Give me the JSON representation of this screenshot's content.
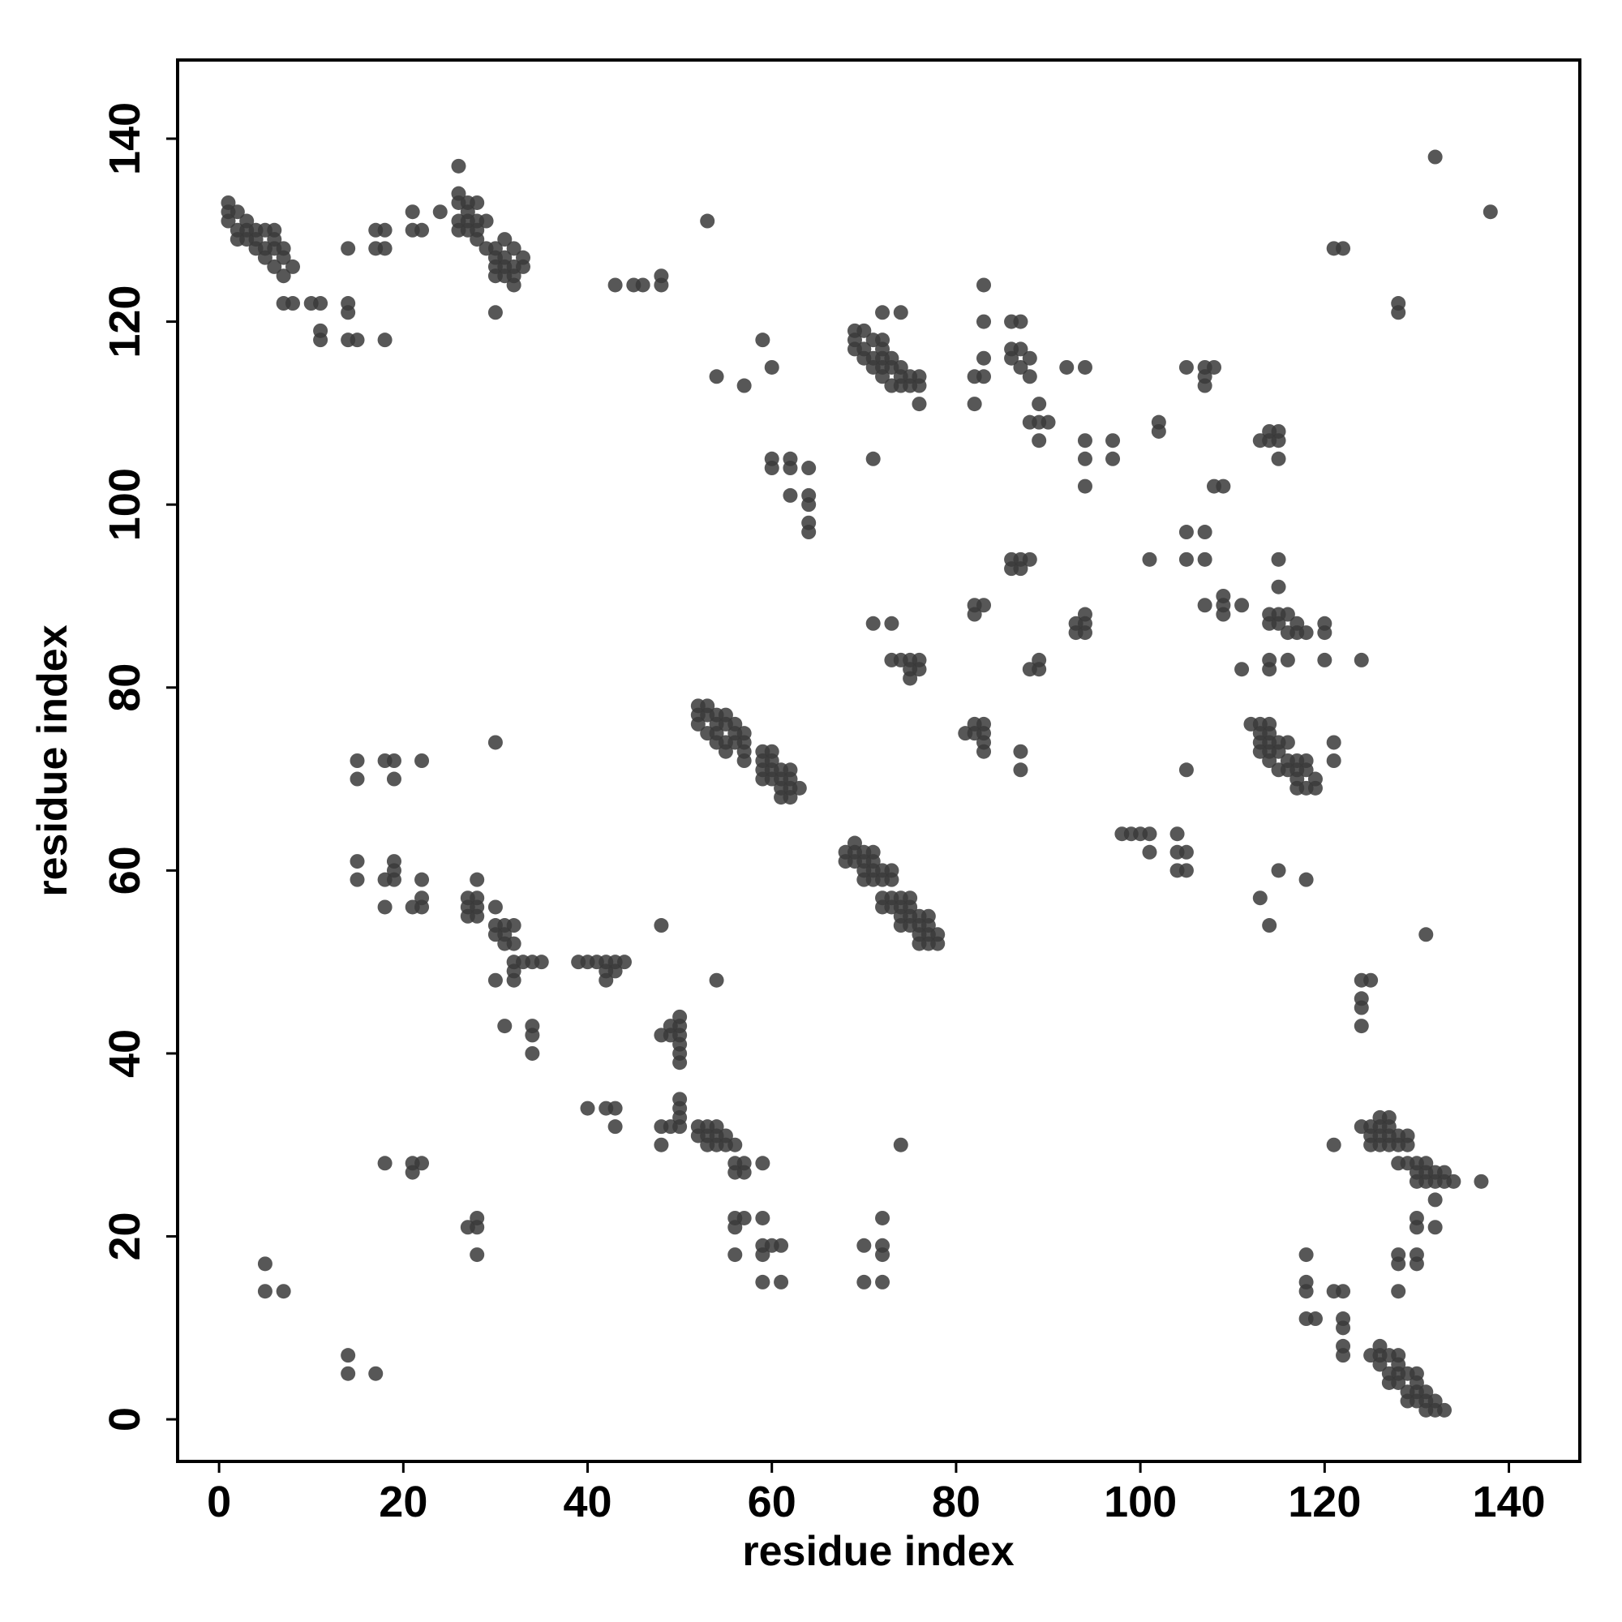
{
  "chart_data": {
    "type": "scatter",
    "xlabel": "residue index",
    "ylabel": "residue index",
    "color": "#3a3a3a",
    "xlim": [
      -4.5,
      147.7
    ],
    "ylim": [
      -4.6,
      148.6
    ],
    "xticks": [
      0,
      20,
      40,
      60,
      80,
      100,
      120,
      140
    ],
    "yticks": [
      0,
      20,
      40,
      60,
      80,
      100,
      120,
      140
    ],
    "x": [
      1,
      1,
      1,
      2,
      2,
      2,
      3,
      3,
      3,
      4,
      4,
      4,
      5,
      5,
      5,
      6,
      6,
      6,
      6,
      7,
      7,
      7,
      8,
      7,
      8,
      10,
      11,
      11,
      11,
      14,
      14,
      14,
      14,
      15,
      17,
      17,
      18,
      18,
      18,
      21,
      21,
      22,
      24,
      26,
      26,
      26,
      26,
      26,
      27,
      27,
      27,
      27,
      28,
      28,
      28,
      28,
      29,
      29,
      30,
      30,
      30,
      30,
      30,
      31,
      31,
      31,
      31,
      32,
      32,
      32,
      32,
      33,
      33,
      43,
      45,
      46,
      48,
      48,
      53,
      54,
      57,
      59,
      60,
      60,
      60,
      62,
      62,
      62,
      64,
      64,
      64,
      64,
      64,
      69,
      69,
      69,
      70,
      70,
      70,
      71,
      71,
      71,
      72,
      72,
      72,
      72,
      72,
      72,
      73,
      73,
      73,
      74,
      74,
      74,
      74,
      75,
      75,
      76,
      76,
      76,
      71,
      82,
      82,
      83,
      83,
      83,
      83,
      86,
      86,
      86,
      87,
      87,
      87,
      88,
      88,
      88,
      89,
      89,
      89,
      90,
      92,
      94,
      94,
      94,
      94,
      97,
      97,
      102,
      102,
      105,
      107,
      107,
      107,
      108,
      108,
      109,
      113,
      114,
      114,
      115,
      115,
      115,
      121,
      122,
      128,
      128,
      132,
      138,
      86,
      86,
      87,
      87,
      88,
      101,
      105,
      105,
      107,
      107,
      107,
      109,
      109,
      109,
      111,
      111,
      114,
      114,
      114,
      114,
      115,
      115,
      115,
      115,
      116,
      116,
      116,
      117,
      117,
      118,
      120,
      120,
      120,
      124,
      71,
      73,
      73,
      74,
      75,
      75,
      75,
      76,
      76,
      82,
      82,
      83,
      88,
      89,
      89,
      93,
      93,
      94,
      94,
      94,
      81,
      82,
      82,
      83,
      83,
      83,
      83,
      87,
      87,
      105,
      112,
      113,
      113,
      113,
      113,
      114,
      114,
      114,
      114,
      114,
      115,
      115,
      115,
      116,
      116,
      116,
      117,
      117,
      117,
      117,
      118,
      118,
      118,
      119,
      119,
      121,
      121,
      98,
      99,
      100,
      101,
      101,
      104,
      104,
      104,
      105,
      105,
      113,
      114,
      115,
      118,
      52,
      52,
      52,
      53,
      53,
      53,
      54,
      54,
      54,
      54,
      55,
      55,
      55,
      55,
      56,
      56,
      56,
      57,
      57,
      57,
      57,
      59,
      59,
      59,
      59,
      60,
      60,
      60,
      60,
      61,
      61,
      61,
      61,
      62,
      62,
      62,
      62,
      63,
      68,
      68,
      69,
      69,
      69,
      70,
      70,
      70,
      70,
      71,
      71,
      71,
      71,
      72,
      72,
      72,
      72,
      73,
      73,
      73,
      73,
      74,
      74,
      74,
      74,
      75,
      75,
      75,
      75,
      76,
      76,
      76,
      76,
      77,
      77,
      77,
      77,
      78,
      78,
      15,
      15,
      18,
      19,
      19,
      22,
      30,
      15,
      15,
      18,
      18,
      19,
      19,
      19,
      21,
      22,
      22,
      22,
      27,
      27,
      27,
      28,
      28,
      28,
      28,
      30,
      30,
      30,
      30,
      31,
      31,
      31,
      32,
      32,
      32,
      32,
      32,
      33,
      34,
      35,
      31,
      34,
      34,
      34,
      39,
      40,
      41,
      42,
      42,
      42,
      43,
      43,
      44,
      48,
      54,
      48,
      49,
      49,
      50,
      50,
      50,
      50,
      50,
      50,
      40,
      42,
      43,
      43,
      48,
      48,
      49,
      50,
      50,
      50,
      50,
      52,
      52,
      53,
      53,
      53,
      54,
      54,
      54,
      55,
      55,
      56,
      56,
      56,
      57,
      57,
      59,
      74,
      18,
      21,
      21,
      22,
      27,
      28,
      28,
      28,
      56,
      56,
      56,
      57,
      59,
      59,
      59,
      59,
      60,
      61,
      61,
      70,
      70,
      72,
      72,
      72,
      72,
      5,
      5,
      7,
      14,
      14,
      17,
      118,
      118,
      118,
      118,
      119,
      121,
      122,
      122,
      122,
      122,
      122,
      124,
      124,
      124,
      124,
      125,
      121,
      131,
      124,
      125,
      125,
      125,
      126,
      126,
      126,
      126,
      127,
      127,
      127,
      127,
      128,
      128,
      128,
      129,
      129,
      129,
      130,
      130,
      130,
      131,
      131,
      131,
      132,
      132,
      133,
      133,
      134,
      137,
      132,
      130,
      130,
      132,
      130,
      130,
      128,
      128,
      128,
      125,
      126,
      126,
      126,
      127,
      127,
      127,
      128,
      128,
      128,
      128,
      129,
      129,
      129,
      130,
      130,
      130,
      130,
      131,
      131,
      131,
      132,
      132,
      133
    ],
    "values": [
      133,
      132,
      131,
      132,
      130,
      129,
      131,
      130,
      129,
      130,
      129,
      128,
      130,
      128,
      127,
      130,
      129,
      128,
      126,
      128,
      127,
      125,
      126,
      122,
      122,
      122,
      122,
      119,
      118,
      128,
      122,
      121,
      118,
      118,
      130,
      128,
      130,
      128,
      118,
      132,
      130,
      130,
      132,
      137,
      134,
      133,
      131,
      130,
      133,
      132,
      131,
      130,
      133,
      131,
      130,
      129,
      131,
      128,
      128,
      127,
      126,
      125,
      121,
      129,
      127,
      126,
      125,
      128,
      126,
      125,
      124,
      127,
      126,
      124,
      124,
      124,
      125,
      124,
      131,
      114,
      113,
      118,
      115,
      105,
      104,
      105,
      104,
      101,
      104,
      101,
      100,
      98,
      97,
      119,
      118,
      117,
      119,
      117,
      116,
      118,
      116,
      115,
      121,
      118,
      117,
      116,
      115,
      114,
      116,
      115,
      113,
      121,
      115,
      114,
      113,
      114,
      113,
      114,
      113,
      111,
      105,
      114,
      111,
      124,
      120,
      116,
      114,
      120,
      117,
      116,
      120,
      117,
      115,
      116,
      114,
      109,
      111,
      109,
      107,
      109,
      115,
      115,
      107,
      105,
      102,
      107,
      105,
      109,
      108,
      115,
      115,
      114,
      113,
      115,
      102,
      102,
      107,
      108,
      107,
      108,
      107,
      105,
      128,
      128,
      122,
      121,
      138,
      132,
      94,
      93,
      94,
      93,
      94,
      94,
      97,
      94,
      97,
      94,
      89,
      90,
      89,
      88,
      89,
      82,
      88,
      87,
      83,
      82,
      94,
      91,
      88,
      87,
      88,
      86,
      83,
      87,
      86,
      86,
      87,
      86,
      83,
      83,
      87,
      87,
      83,
      83,
      83,
      82,
      81,
      83,
      82,
      89,
      88,
      89,
      82,
      83,
      82,
      87,
      86,
      88,
      87,
      86,
      75,
      76,
      75,
      76,
      75,
      74,
      73,
      73,
      71,
      71,
      76,
      76,
      75,
      74,
      73,
      76,
      75,
      74,
      73,
      72,
      74,
      73,
      71,
      74,
      72,
      71,
      72,
      71,
      70,
      69,
      72,
      71,
      69,
      70,
      69,
      74,
      72,
      64,
      64,
      64,
      64,
      62,
      64,
      62,
      60,
      62,
      60,
      57,
      54,
      60,
      59,
      78,
      77,
      76,
      78,
      77,
      75,
      77,
      76,
      75,
      74,
      77,
      76,
      74,
      73,
      76,
      75,
      74,
      75,
      74,
      73,
      72,
      73,
      72,
      71,
      70,
      73,
      72,
      71,
      70,
      71,
      70,
      69,
      68,
      71,
      70,
      69,
      68,
      69,
      62,
      61,
      63,
      62,
      61,
      62,
      61,
      60,
      59,
      62,
      61,
      60,
      59,
      60,
      59,
      57,
      56,
      60,
      59,
      57,
      56,
      57,
      56,
      55,
      54,
      57,
      56,
      55,
      54,
      55,
      54,
      53,
      52,
      55,
      54,
      53,
      52,
      53,
      52,
      72,
      70,
      72,
      72,
      70,
      72,
      74,
      61,
      59,
      59,
      56,
      61,
      60,
      59,
      56,
      59,
      57,
      56,
      57,
      56,
      55,
      59,
      57,
      56,
      55,
      56,
      54,
      53,
      48,
      54,
      53,
      52,
      54,
      52,
      50,
      49,
      48,
      50,
      50,
      50,
      43,
      43,
      42,
      40,
      50,
      50,
      50,
      50,
      49,
      48,
      50,
      49,
      50,
      54,
      48,
      42,
      43,
      42,
      44,
      43,
      42,
      41,
      40,
      39,
      34,
      34,
      34,
      32,
      32,
      30,
      32,
      35,
      34,
      33,
      32,
      32,
      31,
      32,
      31,
      30,
      32,
      31,
      30,
      31,
      30,
      30,
      28,
      27,
      28,
      27,
      28,
      30,
      28,
      28,
      27,
      28,
      21,
      22,
      21,
      18,
      22,
      21,
      18,
      22,
      22,
      19,
      18,
      15,
      19,
      19,
      15,
      19,
      15,
      22,
      19,
      18,
      15,
      17,
      14,
      14,
      7,
      5,
      5,
      18,
      15,
      14,
      11,
      11,
      14,
      14,
      11,
      10,
      8,
      7,
      48,
      46,
      45,
      43,
      48,
      30,
      53,
      32,
      32,
      31,
      30,
      33,
      32,
      31,
      30,
      33,
      32,
      31,
      30,
      31,
      30,
      28,
      31,
      30,
      28,
      28,
      27,
      26,
      28,
      27,
      26,
      27,
      26,
      27,
      26,
      26,
      26,
      24,
      22,
      21,
      21,
      18,
      17,
      18,
      17,
      14,
      7,
      8,
      7,
      6,
      7,
      5,
      4,
      7,
      6,
      5,
      4,
      5,
      3,
      2,
      5,
      4,
      3,
      2,
      3,
      2,
      1,
      2,
      1,
      1
    ]
  }
}
